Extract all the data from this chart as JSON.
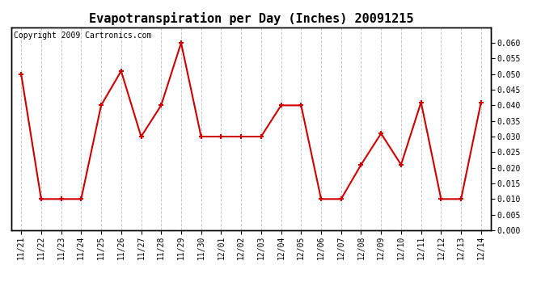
{
  "title": "Evapotranspiration per Day (Inches) 20091215",
  "copyright": "Copyright 2009 Cartronics.com",
  "dates": [
    "11/21",
    "11/22",
    "11/23",
    "11/24",
    "11/25",
    "11/26",
    "11/27",
    "11/28",
    "11/29",
    "11/30",
    "12/01",
    "12/02",
    "12/03",
    "12/04",
    "12/05",
    "12/06",
    "12/07",
    "12/08",
    "12/09",
    "12/10",
    "12/11",
    "12/12",
    "12/13",
    "12/14"
  ],
  "values": [
    0.05,
    0.01,
    0.01,
    0.01,
    0.04,
    0.051,
    0.03,
    0.04,
    0.06,
    0.03,
    0.03,
    0.03,
    0.03,
    0.04,
    0.04,
    0.01,
    0.01,
    0.021,
    0.031,
    0.021,
    0.041,
    0.01,
    0.01,
    0.041
  ],
  "line_color": "#cc0000",
  "marker": "+",
  "marker_size": 5,
  "marker_linewidth": 1.5,
  "linewidth": 1.5,
  "ylim": [
    0.0,
    0.065
  ],
  "yticks": [
    0.0,
    0.005,
    0.01,
    0.015,
    0.02,
    0.025,
    0.03,
    0.035,
    0.04,
    0.045,
    0.05,
    0.055,
    0.06
  ],
  "background_color": "#ffffff",
  "grid_color": "#c8c8c8",
  "title_fontsize": 11,
  "tick_fontsize": 7,
  "copyright_fontsize": 7
}
